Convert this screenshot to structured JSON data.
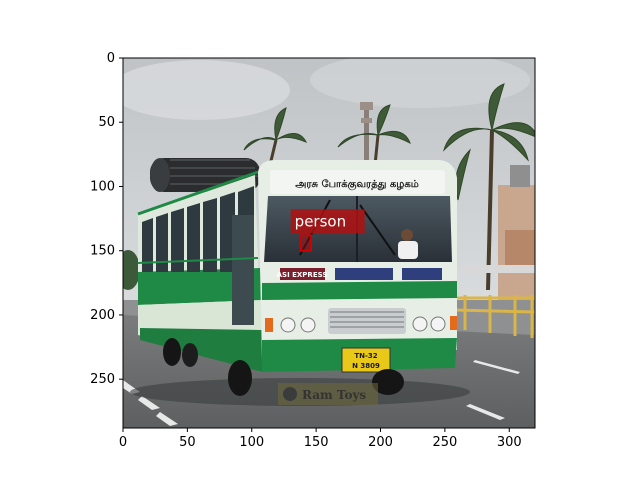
{
  "figure": {
    "x_ticks": [
      "0",
      "50",
      "100",
      "150",
      "200",
      "250",
      "300"
    ],
    "y_ticks": [
      "0",
      "50",
      "100",
      "150",
      "200",
      "250"
    ],
    "x_range": [
      0,
      320
    ],
    "y_range": [
      0,
      288
    ]
  },
  "detection": {
    "label": "person",
    "box": {
      "x": 138,
      "y": 138,
      "w": 8,
      "h": 12
    },
    "color": "#d00000",
    "label_bg": "#b01010"
  },
  "scene": {
    "bus_colors": {
      "body": "#dfe8dc",
      "stripe": "#1f8a45",
      "roof": "#e7eee6"
    },
    "front_sign_text": "அரசு போக்குவரத்து கழகம்",
    "route_board": "ASI EXPRESS",
    "plate_top": "TN-32",
    "plate_bottom": "N 3809",
    "watermark": "Ram Toys"
  }
}
